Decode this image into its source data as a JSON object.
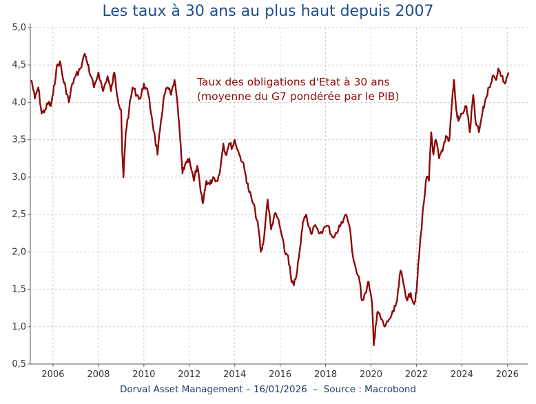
{
  "chart_data": {
    "type": "line",
    "title": "Les taux à 30 ans au plus haut depuis 2007",
    "xlabel": "",
    "ylabel": "",
    "xlim": [
      2005.0,
      2026.9
    ],
    "ylim": [
      0.5,
      5.0
    ],
    "x_ticks": [
      2006,
      2008,
      2010,
      2012,
      2014,
      2016,
      2018,
      2020,
      2022,
      2024,
      2026
    ],
    "x_tick_labels": [
      "2006",
      "2008",
      "2010",
      "2012",
      "2014",
      "2016",
      "2018",
      "2020",
      "2022",
      "2024",
      "2026"
    ],
    "y_ticks": [
      0.5,
      1.0,
      1.5,
      2.0,
      2.5,
      3.0,
      3.5,
      4.0,
      4.5,
      5.0
    ],
    "y_tick_labels": [
      "0,5",
      "1,0",
      "1,5",
      "2,0",
      "2,5",
      "3,0",
      "3,5",
      "4,0",
      "4,5",
      "5,0"
    ],
    "grid": true,
    "annotation": [
      "Taux des obligations d'Etat à 30 ans",
      "(moyenne du G7 pondérée par le PIB)"
    ],
    "series": [
      {
        "name": "Taux des obligations d'Etat à 30 ans (moyenne du G7 pondérée par le PIB)",
        "color": "#8b0a0a",
        "x": [
          2005.05,
          2005.2,
          2005.35,
          2005.5,
          2005.65,
          2005.8,
          2005.9,
          2006.0,
          2006.15,
          2006.3,
          2006.45,
          2006.55,
          2006.7,
          2006.85,
          2007.0,
          2007.2,
          2007.4,
          2007.5,
          2007.6,
          2007.8,
          2008.0,
          2008.2,
          2008.4,
          2008.55,
          2008.7,
          2008.85,
          2009.0,
          2009.05,
          2009.1,
          2009.2,
          2009.35,
          2009.5,
          2009.7,
          2009.85,
          2010.0,
          2010.2,
          2010.35,
          2010.5,
          2010.6,
          2010.75,
          2010.9,
          2011.05,
          2011.2,
          2011.35,
          2011.5,
          2011.6,
          2011.7,
          2011.85,
          2012.0,
          2012.2,
          2012.35,
          2012.5,
          2012.6,
          2012.75,
          2012.9,
          2013.05,
          2013.25,
          2013.4,
          2013.5,
          2013.6,
          2013.75,
          2013.9,
          2014.0,
          2014.2,
          2014.35,
          2014.5,
          2014.6,
          2014.75,
          2014.9,
          2015.05,
          2015.15,
          2015.25,
          2015.45,
          2015.6,
          2015.75,
          2015.9,
          2016.05,
          2016.2,
          2016.35,
          2016.5,
          2016.6,
          2016.75,
          2016.9,
          2017.0,
          2017.15,
          2017.35,
          2017.5,
          2017.7,
          2017.9,
          2018.1,
          2018.3,
          2018.5,
          2018.7,
          2018.9,
          2019.05,
          2019.2,
          2019.35,
          2019.5,
          2019.6,
          2019.75,
          2019.9,
          2020.05,
          2020.12,
          2020.2,
          2020.3,
          2020.45,
          2020.6,
          2020.8,
          2021.0,
          2021.15,
          2021.3,
          2021.45,
          2021.6,
          2021.75,
          2021.9,
          2022.0,
          2022.1,
          2022.2,
          2022.3,
          2022.45,
          2022.55,
          2022.65,
          2022.75,
          2022.85,
          2023.0,
          2023.15,
          2023.3,
          2023.45,
          2023.55,
          2023.65,
          2023.75,
          2023.85,
          2024.0,
          2024.2,
          2024.35,
          2024.5,
          2024.6,
          2024.75,
          2024.9,
          2025.05,
          2025.2,
          2025.35,
          2025.5,
          2025.6,
          2025.75,
          2025.9,
          2026.05
        ],
        "y": [
          4.3,
          4.05,
          4.2,
          3.85,
          3.9,
          4.0,
          3.95,
          4.1,
          4.45,
          4.55,
          4.3,
          4.2,
          4.0,
          4.25,
          4.35,
          4.45,
          4.65,
          4.55,
          4.4,
          4.2,
          4.4,
          4.15,
          4.35,
          4.15,
          4.4,
          4.05,
          3.9,
          3.3,
          3.0,
          3.6,
          3.9,
          4.2,
          4.1,
          4.05,
          4.25,
          4.1,
          3.8,
          3.5,
          3.3,
          3.75,
          4.1,
          4.2,
          4.1,
          4.3,
          3.9,
          3.5,
          3.05,
          3.2,
          3.25,
          2.95,
          3.15,
          2.8,
          2.65,
          2.95,
          2.9,
          3.0,
          2.95,
          3.2,
          3.45,
          3.3,
          3.45,
          3.4,
          3.5,
          3.3,
          3.2,
          3.0,
          2.85,
          2.7,
          2.55,
          2.3,
          2.0,
          2.1,
          2.7,
          2.3,
          2.5,
          2.45,
          2.25,
          2.0,
          1.95,
          1.6,
          1.55,
          1.75,
          2.1,
          2.4,
          2.5,
          2.25,
          2.35,
          2.25,
          2.3,
          2.35,
          2.2,
          2.25,
          2.4,
          2.5,
          2.35,
          1.95,
          1.75,
          1.6,
          1.35,
          1.45,
          1.6,
          1.3,
          0.75,
          1.0,
          1.2,
          1.1,
          1.0,
          1.1,
          1.2,
          1.35,
          1.75,
          1.55,
          1.35,
          1.45,
          1.3,
          1.45,
          1.9,
          2.25,
          2.6,
          3.0,
          2.95,
          3.6,
          3.3,
          3.5,
          3.25,
          3.35,
          3.55,
          3.5,
          3.95,
          4.3,
          3.9,
          3.75,
          3.85,
          3.95,
          3.6,
          4.1,
          3.75,
          3.6,
          3.85,
          4.05,
          4.2,
          4.35,
          4.3,
          4.45,
          4.35,
          4.25,
          4.4
        ]
      }
    ]
  },
  "footer": {
    "left": "Dorval Asset Management – 16/01/2026  –  ",
    "right": "Source : Macrobond"
  }
}
